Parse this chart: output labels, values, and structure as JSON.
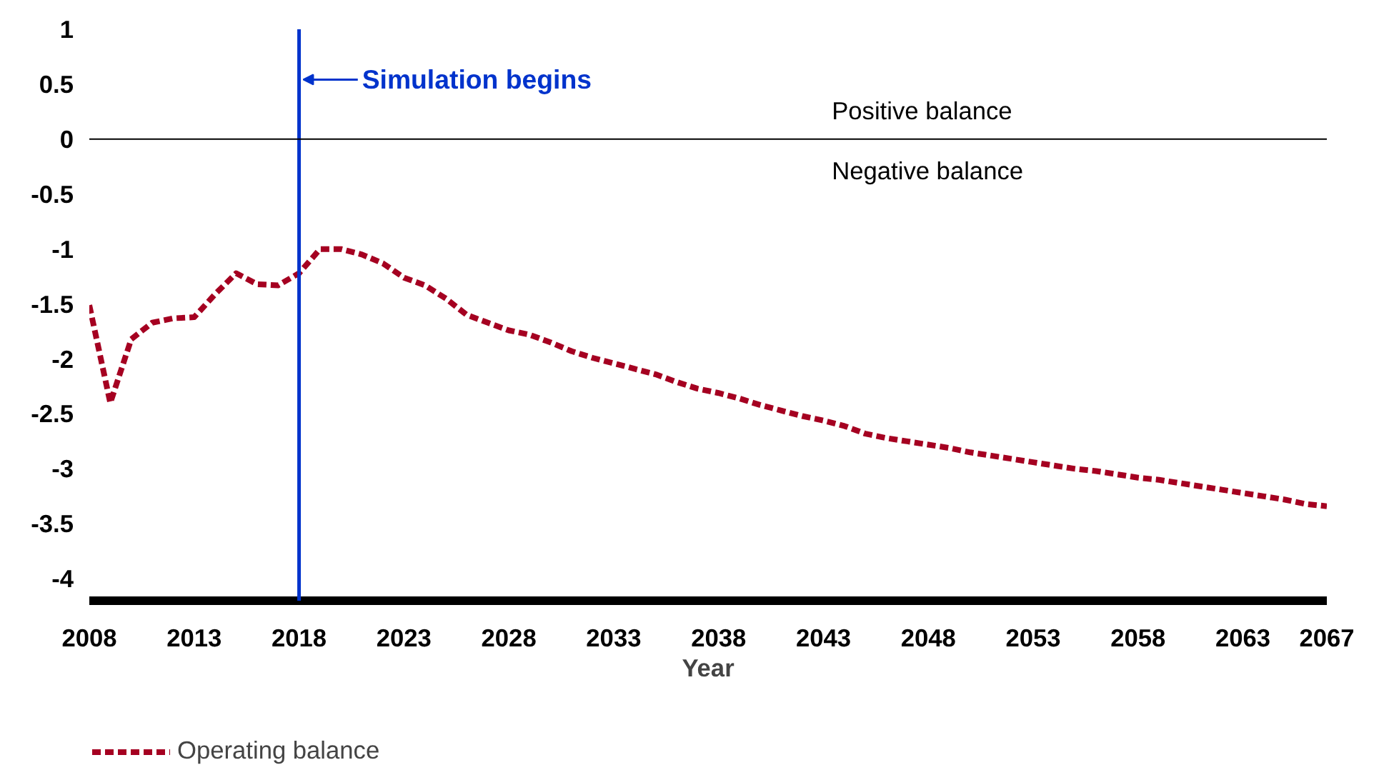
{
  "chart_data": {
    "type": "line",
    "xlabel": "Year",
    "x": [
      2008,
      2009,
      2010,
      2011,
      2012,
      2013,
      2014,
      2015,
      2016,
      2017,
      2018,
      2019,
      2020,
      2021,
      2022,
      2023,
      2024,
      2025,
      2026,
      2027,
      2028,
      2029,
      2030,
      2031,
      2032,
      2033,
      2034,
      2035,
      2036,
      2037,
      2038,
      2039,
      2040,
      2041,
      2042,
      2043,
      2044,
      2045,
      2046,
      2047,
      2048,
      2049,
      2050,
      2051,
      2052,
      2053,
      2054,
      2055,
      2056,
      2057,
      2058,
      2059,
      2060,
      2061,
      2062,
      2063,
      2064,
      2065,
      2066,
      2067
    ],
    "series": [
      {
        "name": "Operating balance",
        "color": "#a50021",
        "line_style": "dashed",
        "values": [
          -1.51,
          -2.4,
          -1.82,
          -1.67,
          -1.63,
          -1.62,
          -1.41,
          -1.22,
          -1.32,
          -1.33,
          -1.22,
          -1.0,
          -1.0,
          -1.05,
          -1.13,
          -1.26,
          -1.33,
          -1.45,
          -1.6,
          -1.67,
          -1.74,
          -1.78,
          -1.85,
          -1.93,
          -1.99,
          -2.04,
          -2.09,
          -2.14,
          -2.21,
          -2.27,
          -2.31,
          -2.36,
          -2.42,
          -2.47,
          -2.52,
          -2.56,
          -2.61,
          -2.68,
          -2.72,
          -2.75,
          -2.78,
          -2.81,
          -2.85,
          -2.88,
          -2.91,
          -2.94,
          -2.97,
          -3.0,
          -3.02,
          -3.05,
          -3.08,
          -3.1,
          -3.13,
          -3.16,
          -3.19,
          -3.22,
          -3.25,
          -3.28,
          -3.32,
          -3.34
        ]
      }
    ],
    "xlim": [
      2008,
      2067
    ],
    "ylim": [
      -4.2,
      1
    ],
    "xticks": [
      2008,
      2013,
      2018,
      2023,
      2028,
      2033,
      2038,
      2043,
      2048,
      2053,
      2058,
      2063,
      2067
    ],
    "yticks": [
      -4,
      -3.5,
      -3,
      -2.5,
      -2,
      -1.5,
      -1,
      -0.5,
      0,
      0.5,
      1
    ],
    "ref_lines": [
      {
        "axis": "x",
        "value": 2018,
        "label": "Simulation begins",
        "color": "#0033cc"
      },
      {
        "axis": "y",
        "value": 0,
        "color": "#000000"
      }
    ],
    "annotations": [
      "Positive balance",
      "Negative balance"
    ],
    "grid": false,
    "legend": "bottom left",
    "marker": "none"
  }
}
